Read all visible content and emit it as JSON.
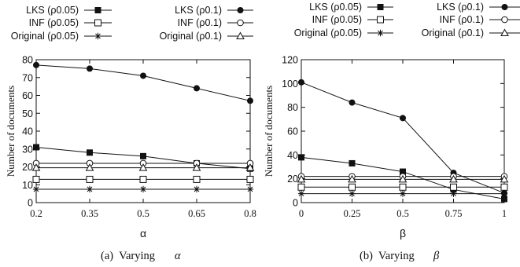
{
  "chart_data": [
    {
      "type": "line",
      "caption_prefix": "(a)  Varying",
      "caption_symbol": "α",
      "xlabel": "α",
      "ylabel": "Number of documents",
      "x": [
        0.2,
        0.35,
        0.5,
        0.65,
        0.8
      ],
      "xticks": [
        "0.2",
        "0.35",
        "0.5",
        "0.65",
        "0.8"
      ],
      "ylim": [
        0,
        80
      ],
      "yticks": [
        0,
        10,
        20,
        30,
        40,
        50,
        60,
        70,
        80
      ],
      "series": [
        {
          "name": "LKS (ρ0.05)",
          "marker": "filled-square",
          "values": [
            31,
            28,
            26,
            22,
            19
          ]
        },
        {
          "name": "LKS (ρ0.1)",
          "marker": "filled-circle",
          "values": [
            77,
            75,
            71,
            64,
            57
          ]
        },
        {
          "name": "INF (ρ0.05)",
          "marker": "open-square",
          "values": [
            13,
            13,
            13,
            13,
            13
          ]
        },
        {
          "name": "INF (ρ0.1)",
          "marker": "open-circle",
          "values": [
            22,
            22,
            22,
            22,
            22
          ]
        },
        {
          "name": "Original (ρ0.05)",
          "marker": "star",
          "values": [
            7.5,
            7.5,
            7.5,
            7.5,
            7.5
          ]
        },
        {
          "name": "Original (ρ0.1)",
          "marker": "open-triangle",
          "values": [
            19.5,
            19.5,
            19.5,
            19.5,
            19.5
          ]
        }
      ]
    },
    {
      "type": "line",
      "caption_prefix": "(b)  Varying",
      "caption_symbol": "β",
      "xlabel": "β",
      "ylabel": "Number of documents",
      "x": [
        0,
        0.25,
        0.5,
        0.75,
        1
      ],
      "xticks": [
        "0",
        "0.25",
        "0.5",
        "0.75",
        "1"
      ],
      "ylim": [
        0,
        120
      ],
      "yticks": [
        0,
        20,
        40,
        60,
        80,
        100,
        120
      ],
      "series": [
        {
          "name": "LKS (ρ0.05)",
          "marker": "filled-square",
          "values": [
            38,
            33,
            26,
            11,
            3
          ]
        },
        {
          "name": "LKS (ρ0.1)",
          "marker": "filled-circle",
          "values": [
            101,
            84,
            71,
            25,
            8
          ]
        },
        {
          "name": "INF (ρ0.05)",
          "marker": "open-square",
          "values": [
            13,
            13,
            13,
            13,
            13
          ]
        },
        {
          "name": "INF (ρ0.1)",
          "marker": "open-circle",
          "values": [
            22,
            22,
            22,
            22,
            22
          ]
        },
        {
          "name": "Original (ρ0.05)",
          "marker": "star",
          "values": [
            7.5,
            7.5,
            7.5,
            7.5,
            7.5
          ]
        },
        {
          "name": "Original (ρ0.1)",
          "marker": "open-triangle",
          "values": [
            19.5,
            19.5,
            19.5,
            19.5,
            19.5
          ]
        }
      ]
    }
  ]
}
